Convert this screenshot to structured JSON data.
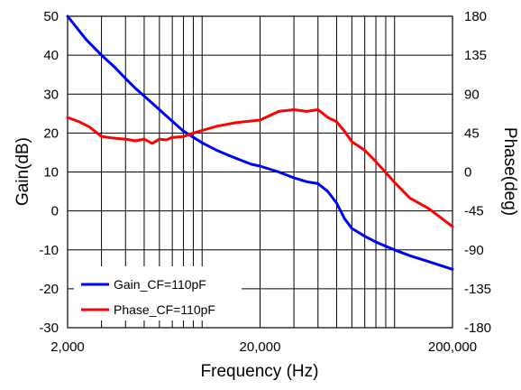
{
  "chart_data": {
    "type": "line",
    "xlabel": "Frequency (Hz)",
    "ylabel": "Gain(dB)",
    "y2label": "Phase(deg)",
    "xscale": "log",
    "xlim": [
      2000,
      200000
    ],
    "ylim": [
      -30,
      50
    ],
    "y2lim": [
      -180,
      180
    ],
    "grid": true,
    "legend": "bottom-left",
    "x_ticks": [
      {
        "value": 2000,
        "label": "2,000"
      },
      {
        "value": 20000,
        "label": "20,000"
      },
      {
        "value": 200000,
        "label": "200,000"
      }
    ],
    "y_ticks": [
      {
        "value": 50,
        "label": "50"
      },
      {
        "value": 40,
        "label": "40"
      },
      {
        "value": 30,
        "label": "30"
      },
      {
        "value": 20,
        "label": "20"
      },
      {
        "value": 10,
        "label": "10"
      },
      {
        "value": 0,
        "label": "0"
      },
      {
        "value": -10,
        "label": "-10"
      },
      {
        "value": -20,
        "label": "-20"
      },
      {
        "value": -30,
        "label": "-30"
      }
    ],
    "y2_ticks": [
      {
        "value": 180,
        "label": "180"
      },
      {
        "value": 135,
        "label": "135"
      },
      {
        "value": 90,
        "label": "90"
      },
      {
        "value": 45,
        "label": "45"
      },
      {
        "value": 0,
        "label": "0"
      },
      {
        "value": -45,
        "label": "-45"
      },
      {
        "value": -90,
        "label": "-90"
      },
      {
        "value": -135,
        "label": "-135"
      },
      {
        "value": -180,
        "label": "-180"
      }
    ],
    "series": [
      {
        "name": "Gain_CF=110pF",
        "axis": "left",
        "color": "#0000ff",
        "x": [
          2000,
          2500,
          3000,
          3500,
          4000,
          4500,
          5000,
          6000,
          7000,
          8000,
          10000,
          12000,
          15000,
          18000,
          20000,
          25000,
          30000,
          35000,
          40000,
          45000,
          50000,
          55000,
          60000,
          70000,
          80000,
          100000,
          120000,
          150000,
          200000
        ],
        "values": [
          50,
          44,
          40,
          37,
          34,
          31.5,
          29.5,
          26,
          23,
          20.5,
          17.5,
          15.5,
          13.5,
          12,
          11.5,
          10,
          8.5,
          7.5,
          7,
          5,
          2,
          -2,
          -4.5,
          -6.5,
          -8,
          -10,
          -11.5,
          -13,
          -15
        ]
      },
      {
        "name": "Phase_CF=110pF",
        "axis": "right",
        "color": "#ff0000",
        "x": [
          2000,
          2300,
          2600,
          3000,
          3500,
          4000,
          4500,
          5000,
          5500,
          6000,
          6500,
          7000,
          8000,
          9000,
          10000,
          12000,
          15000,
          18000,
          20000,
          25000,
          30000,
          35000,
          40000,
          45000,
          50000,
          55000,
          60000,
          70000,
          80000,
          100000,
          120000,
          150000,
          200000
        ],
        "values": [
          63,
          58,
          52,
          41,
          39,
          38,
          36,
          38,
          33,
          38,
          37,
          40,
          41,
          45,
          48,
          53,
          57,
          59,
          60,
          70,
          72,
          70,
          72,
          63,
          58,
          47,
          35,
          25,
          12,
          -12,
          -30,
          -42,
          -63
        ]
      }
    ]
  }
}
